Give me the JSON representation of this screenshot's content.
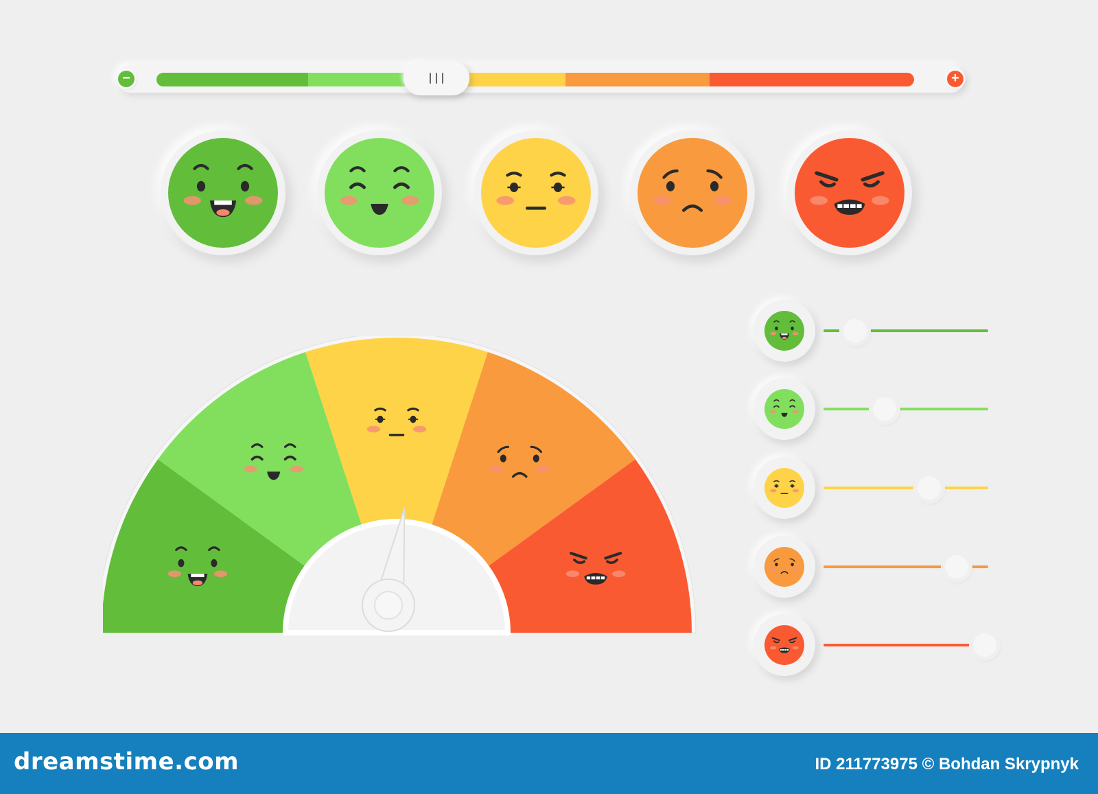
{
  "scale_bar": {
    "minus_icon": "minus-icon",
    "plus_icon": "plus-icon",
    "minus_label": "−",
    "plus_label": "+",
    "segments": [
      "#62bd3b",
      "#82df5e",
      "#fed347",
      "#f89a3d",
      "#fa5a32"
    ],
    "thumb_position": 0.37
  },
  "moods": [
    {
      "name": "very-happy",
      "color": "#62bd3b",
      "expression": "laugh"
    },
    {
      "name": "happy",
      "color": "#82df5e",
      "expression": "smile"
    },
    {
      "name": "neutral",
      "color": "#fed347",
      "expression": "neutral"
    },
    {
      "name": "sad",
      "color": "#f89a3d",
      "expression": "sad"
    },
    {
      "name": "angry",
      "color": "#fa5a32",
      "expression": "angry"
    }
  ],
  "gauge": {
    "needle_value": 0.52,
    "segments": [
      "#62bd3b",
      "#82df5e",
      "#fed347",
      "#f89a3d",
      "#fa5a32"
    ]
  },
  "mini_sliders": [
    {
      "mood": "very-happy",
      "color": "#62bd3b",
      "value": 0.19
    },
    {
      "mood": "happy",
      "color": "#82df5e",
      "value": 0.37
    },
    {
      "mood": "neutral",
      "color": "#fed347",
      "value": 0.64
    },
    {
      "mood": "sad",
      "color": "#f89a3d",
      "value": 0.81
    },
    {
      "mood": "angry",
      "color": "#fa5a32",
      "value": 0.98
    }
  ],
  "footer": {
    "brand": "dreamstime.com",
    "credit": "ID 211773975 © Bohdan Skrypnyk",
    "background": "#1580bd"
  }
}
